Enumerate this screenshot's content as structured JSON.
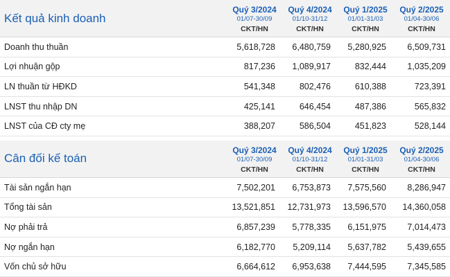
{
  "columns": [
    {
      "quarter": "Quý 3/2024",
      "range": "01/07-30/09",
      "unit": "CKT/HN"
    },
    {
      "quarter": "Quý 4/2024",
      "range": "01/10-31/12",
      "unit": "CKT/HN"
    },
    {
      "quarter": "Quý 1/2025",
      "range": "01/01-31/03",
      "unit": "CKT/HN"
    },
    {
      "quarter": "Quý 2/2025",
      "range": "01/04-30/06",
      "unit": "CKT/HN"
    }
  ],
  "business": {
    "title": "Kết quả kinh doanh",
    "rows": [
      {
        "label": "Doanh thu thuần",
        "values": [
          "5,618,728",
          "6,480,759",
          "5,280,925",
          "6,509,731"
        ]
      },
      {
        "label": "Lợi nhuận gộp",
        "values": [
          "817,236",
          "1,089,917",
          "832,444",
          "1,035,209"
        ]
      },
      {
        "label": "LN thuần từ HĐKD",
        "values": [
          "541,348",
          "802,476",
          "610,388",
          "723,391"
        ]
      },
      {
        "label": "LNST thu nhập DN",
        "values": [
          "425,141",
          "646,454",
          "487,386",
          "565,832"
        ]
      },
      {
        "label": "LNST của CĐ cty mẹ",
        "values": [
          "388,207",
          "586,504",
          "451,823",
          "528,144"
        ]
      }
    ]
  },
  "balance": {
    "title": "Cân đối kế toán",
    "rows": [
      {
        "label": "Tài sản ngắn hạn",
        "values": [
          "7,502,201",
          "6,753,873",
          "7,575,560",
          "8,286,947"
        ]
      },
      {
        "label": "Tổng tài sản",
        "values": [
          "13,521,851",
          "12,731,973",
          "13,596,570",
          "14,360,058"
        ]
      },
      {
        "label": "Nợ phải trả",
        "values": [
          "6,857,239",
          "5,778,335",
          "6,151,975",
          "7,014,473"
        ]
      },
      {
        "label": "Nợ ngắn hạn",
        "values": [
          "6,182,770",
          "5,209,114",
          "5,637,782",
          "5,439,655"
        ]
      },
      {
        "label": "Vốn chủ sở hữu",
        "values": [
          "6,664,612",
          "6,953,638",
          "7,444,595",
          "7,345,585"
        ]
      }
    ]
  }
}
